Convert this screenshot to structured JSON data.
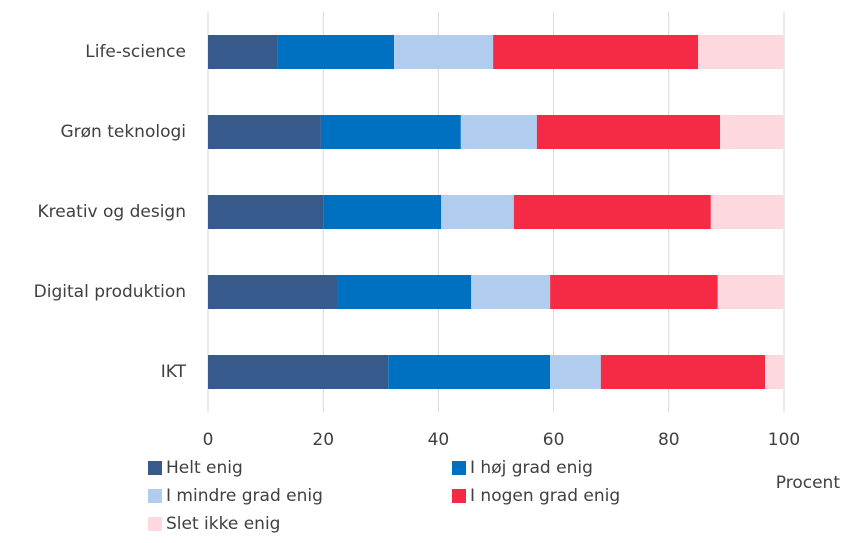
{
  "chart_data": {
    "type": "stacked_barh",
    "categories": [
      "Life-science",
      "Grøn teknologi",
      "Kreativ og design",
      "Digital produktion",
      "IKT"
    ],
    "series": [
      {
        "name": "Helt enig",
        "color": "#375a8c",
        "values": [
          12,
          19.6,
          20,
          22.4,
          31.3
        ]
      },
      {
        "name": "I høj grad enig",
        "color": "#0070c0",
        "values": [
          20.3,
          24.3,
          20.5,
          23.3,
          28.1
        ]
      },
      {
        "name": "I mindre grad enig",
        "color": "#b0cdf0",
        "values": [
          17.2,
          13.2,
          12.6,
          13.7,
          8.8
        ]
      },
      {
        "name": "I nogen grad enig",
        "color": "#f52a44",
        "values": [
          35.6,
          31.8,
          34.2,
          29.1,
          28.5
        ]
      },
      {
        "name": "Slet ikke enig",
        "color": "#fdd9df",
        "values": [
          14.9,
          11.1,
          12.7,
          11.5,
          3.3
        ]
      }
    ],
    "xlabel": "Procent",
    "xlim": [
      0,
      100
    ],
    "xticks": [
      0,
      20,
      40,
      60,
      80,
      100
    ],
    "grid": true
  }
}
